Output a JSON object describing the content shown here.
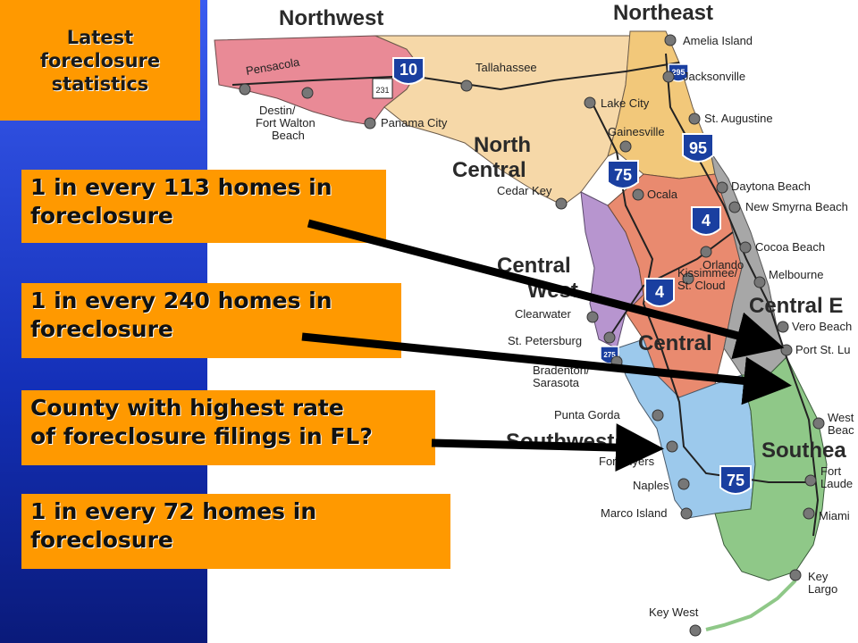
{
  "title": "Latest\nforeclosure\nstatistics",
  "callouts": [
    "1 in every 113 homes in\nforeclosure",
    "1 in every 240 homes in\nforeclosure",
    "County with highest rate\nof foreclosure filings in FL?",
    "1 in every 72 homes in\nforeclosure"
  ],
  "regions": {
    "northwest": "Northwest",
    "northeast": "Northeast",
    "north_central": "North\nCentral",
    "central_west": "Central\nWest",
    "central": "Central",
    "central_east": "Central E",
    "southwest": "Southwest",
    "southeast": "Southea"
  },
  "cities": {
    "amelia_island": "Amelia Island",
    "jacksonville": "Jacksonville",
    "st_augustine": "St. Augustine",
    "daytona_beach": "Daytona Beach",
    "new_smyrna_beach": "New Smyrna Beach",
    "cocoa_beach": "Cocoa Beach",
    "melbourne": "Melbourne",
    "vero_beach": "Vero Beach",
    "port_st_lucie": "Port St. Lu",
    "west_palm_beach": "West\nBeac",
    "fort_lauderdale": "Fort\nLaude",
    "miami": "Miami",
    "key_largo": "Key\nLargo",
    "key_west": "Key West",
    "marco_island": "Marco Island",
    "naples": "Naples",
    "fort_myers": "Fort Myers",
    "punta_gorda": "Punta Gorda",
    "bradenton_sarasota": "Bradenton/\nSarasota",
    "st_petersburg": "St. Petersburg",
    "clearwater": "Clearwater",
    "kissimmee": "Kissimmee/\nSt. Cloud",
    "orlando": "Orlando",
    "ocala": "Ocala",
    "cedar_key": "Cedar Key",
    "gainesville": "Gainesville",
    "lake_city": "Lake City",
    "tallahassee": "Tallahassee",
    "pensacola": "Pensacola",
    "destin": "Destin/\nFort Walton\nBeach",
    "panama_city": "Panama City"
  },
  "highways": [
    "10",
    "231",
    "295",
    "95",
    "75",
    "4",
    "75",
    "4",
    "275"
  ],
  "colors": {
    "northwest": "#e98a96",
    "north_central": "#f6d8a8",
    "northeast": "#f2c87a",
    "central_west": "#b795cf",
    "central": "#e98a6f",
    "central_east": "#a7a7a7",
    "southwest": "#9cc9ec",
    "southeast": "#8fc888",
    "callout": "#ff9900",
    "sidebar": "#1a33c4"
  }
}
